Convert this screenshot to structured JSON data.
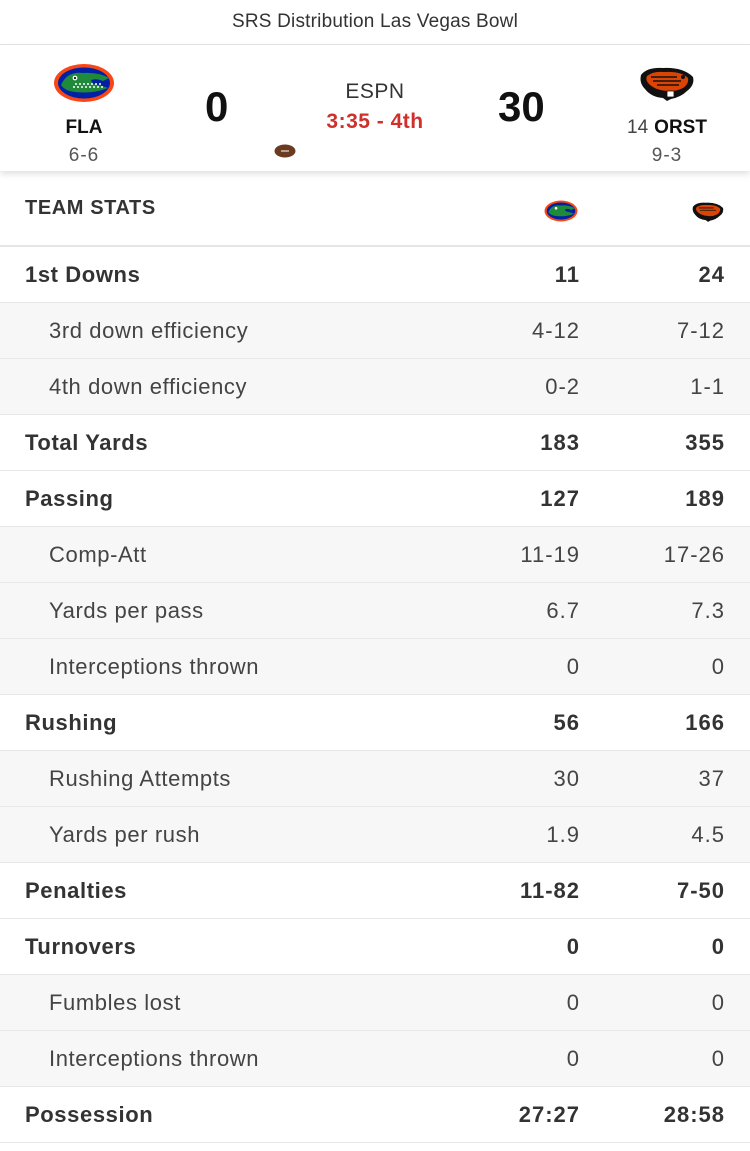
{
  "header": {
    "title": "SRS Distribution Las Vegas Bowl"
  },
  "game": {
    "away": {
      "abbr": "FLA",
      "record": "6-6",
      "score": "0",
      "logo_icon": "gators-logo-icon",
      "color": "#0021a5",
      "accent": "#fa4616"
    },
    "home": {
      "rank": "14",
      "abbr": "ORST",
      "record": "9-3",
      "score": "30",
      "logo_icon": "beavers-logo-icon",
      "color": "#dc4405"
    },
    "network": "ESPN",
    "clock": "3:35 - 4th",
    "clock_color": "#d0302b",
    "possession_icon": "football-icon"
  },
  "team_stats": {
    "title": "TEAM STATS",
    "rows": [
      {
        "label": "1st Downs",
        "away": "11",
        "home": "24",
        "type": "main"
      },
      {
        "label": "3rd down efficiency",
        "away": "4-12",
        "home": "7-12",
        "type": "sub"
      },
      {
        "label": "4th down efficiency",
        "away": "0-2",
        "home": "1-1",
        "type": "sub"
      },
      {
        "label": "Total Yards",
        "away": "183",
        "home": "355",
        "type": "main"
      },
      {
        "label": "Passing",
        "away": "127",
        "home": "189",
        "type": "main"
      },
      {
        "label": "Comp-Att",
        "away": "11-19",
        "home": "17-26",
        "type": "sub"
      },
      {
        "label": "Yards per pass",
        "away": "6.7",
        "home": "7.3",
        "type": "sub"
      },
      {
        "label": "Interceptions thrown",
        "away": "0",
        "home": "0",
        "type": "sub"
      },
      {
        "label": "Rushing",
        "away": "56",
        "home": "166",
        "type": "main"
      },
      {
        "label": "Rushing Attempts",
        "away": "30",
        "home": "37",
        "type": "sub"
      },
      {
        "label": "Yards per rush",
        "away": "1.9",
        "home": "4.5",
        "type": "sub"
      },
      {
        "label": "Penalties",
        "away": "11-82",
        "home": "7-50",
        "type": "main"
      },
      {
        "label": "Turnovers",
        "away": "0",
        "home": "0",
        "type": "main"
      },
      {
        "label": "Fumbles lost",
        "away": "0",
        "home": "0",
        "type": "sub"
      },
      {
        "label": "Interceptions thrown",
        "away": "0",
        "home": "0",
        "type": "sub"
      },
      {
        "label": "Possession",
        "away": "27:27",
        "home": "28:58",
        "type": "main"
      }
    ]
  }
}
